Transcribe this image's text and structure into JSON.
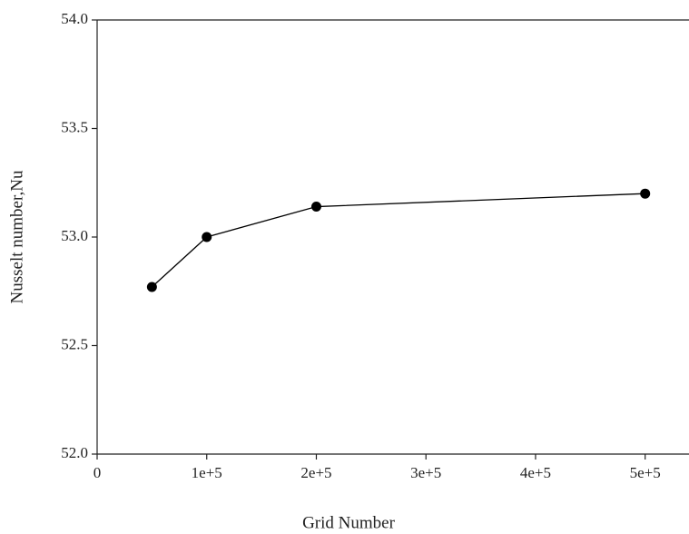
{
  "chart_data": {
    "type": "line",
    "xlabel": "Grid Number",
    "ylabel": "Nusselt number,Nu",
    "x": [
      50000,
      100000,
      200000,
      500000
    ],
    "series": [
      {
        "name": "Nu",
        "color": "#000000",
        "values": [
          52.77,
          53.0,
          53.14,
          53.2
        ]
      }
    ],
    "xlim": [
      0,
      540000
    ],
    "xticks": [
      0,
      {
        "value": 100000,
        "label": "1e+5"
      },
      {
        "value": 200000,
        "label": "2e+5"
      },
      {
        "value": 300000,
        "label": "3e+5"
      },
      {
        "value": 400000,
        "label": "4e+5"
      },
      {
        "value": 500000,
        "label": "5e+5"
      }
    ],
    "ylim": [
      52,
      54
    ],
    "yticks": [
      {
        "value": 52,
        "label": "52.0"
      },
      {
        "value": 52.5,
        "label": "52.5"
      },
      {
        "value": 53,
        "label": "53.0"
      },
      {
        "value": 53.5,
        "label": "53.5"
      },
      {
        "value": 54,
        "label": "54.0"
      }
    ],
    "grid": false
  }
}
